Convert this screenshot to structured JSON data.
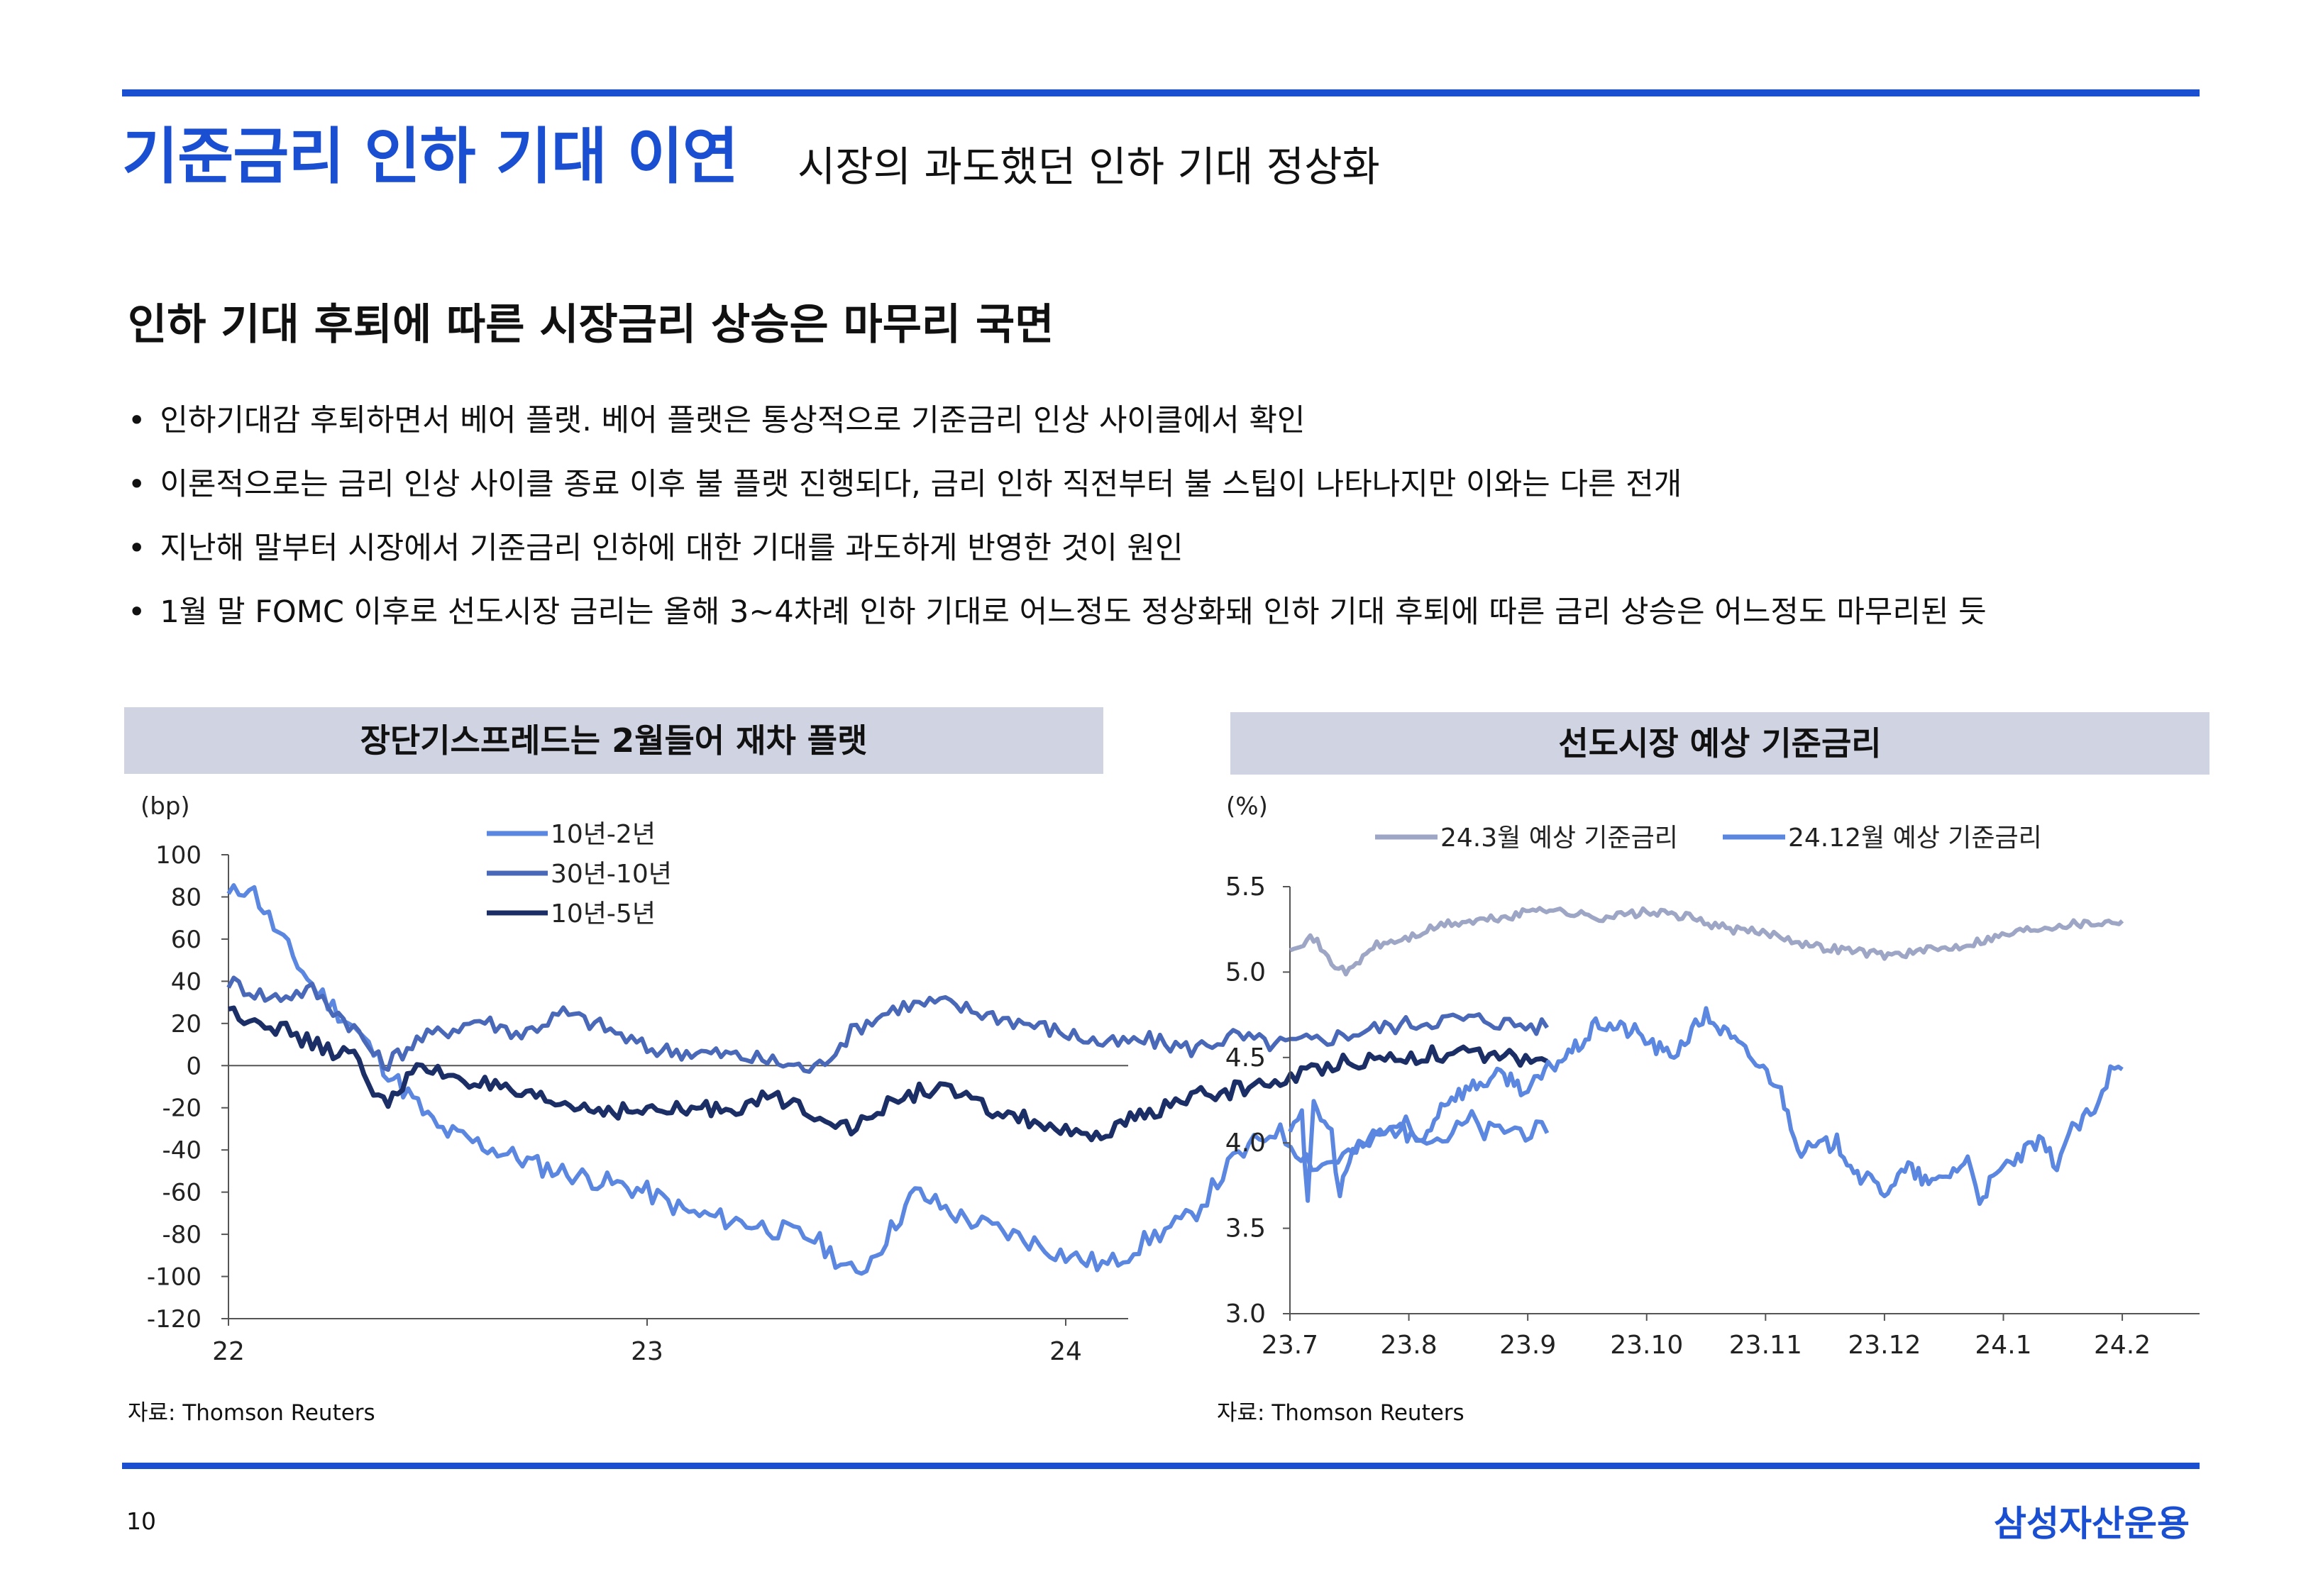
{
  "header": {
    "title": "기준금리 인하 기대 이연",
    "subtitle": "시장의 과도했던 인하 기대 정상화"
  },
  "section": {
    "headline": "인하 기대 후퇴에 따른 시장금리 상승은 마무리 국면",
    "bullets": [
      "인하기대감 후퇴하면서 베어 플랫. 베어 플랫은 통상적으로 기준금리 인상 사이클에서 확인",
      "이론적으로는 금리 인상 사이클 종료 이후 불 플랫 진행되다, 금리 인하 직전부터 불 스팁이 나타나지만 이와는 다른 전개",
      "지난해 말부터 시장에서 기준금리 인하에 대한 기대를 과도하게 반영한 것이 원인",
      "1월 말 FOMC 이후로 선도시장 금리는 올해 3~4차례 인하 기대로 어느정도 정상화돼 인하 기대 후퇴에 따른 금리 상승은 어느정도 마무리된 듯"
    ]
  },
  "colors": {
    "accent": "#1b4fd1",
    "panel_bg": "#d0d4e2",
    "series_light": "#5b87e0",
    "series_mid": "#4a68b8",
    "series_dark": "#1b2f66",
    "series_gray": "#9ea6c6"
  },
  "chart_data": [
    {
      "type": "line",
      "title": "장단기스프레드는 2월들어 재차 플랫",
      "unit_label": "(bp)",
      "x_ticks": [
        "22",
        "23",
        "24"
      ],
      "ylim": [
        -120,
        100
      ],
      "y_ticks": [
        100,
        80,
        60,
        40,
        20,
        0,
        -20,
        -40,
        -60,
        -80,
        -100,
        -120
      ],
      "legend_position": "top-center",
      "series": [
        {
          "name": "10년-2년",
          "color_key": "series_light",
          "anchors": [
            [
              0,
              80
            ],
            [
              0.05,
              86
            ],
            [
              0.12,
              62
            ],
            [
              0.2,
              38
            ],
            [
              0.3,
              18
            ],
            [
              0.37,
              0
            ],
            [
              0.5,
              -30
            ],
            [
              0.75,
              -48
            ],
            [
              1.0,
              -60
            ],
            [
              1.1,
              -70
            ],
            [
              1.25,
              -75
            ],
            [
              1.4,
              -82
            ],
            [
              1.5,
              -100
            ],
            [
              1.56,
              -85
            ],
            [
              1.64,
              -60
            ],
            [
              1.75,
              -72
            ],
            [
              1.9,
              -82
            ],
            [
              2.0,
              -90
            ],
            [
              2.1,
              -95
            ],
            [
              2.2,
              -82
            ],
            [
              2.3,
              -72
            ],
            [
              2.4,
              -45
            ],
            [
              2.5,
              -30
            ],
            [
              2.6,
              -48
            ],
            [
              2.7,
              -40
            ],
            [
              2.8,
              -28
            ],
            [
              2.9,
              -35
            ],
            [
              2.97,
              -26
            ],
            [
              3.0,
              -32
            ],
            [
              3.06,
              -30
            ],
            [
              3.15,
              -32
            ]
          ]
        },
        {
          "name": "30년-10년",
          "color_key": "series_mid",
          "anchors": [
            [
              0,
              40
            ],
            [
              0.1,
              32
            ],
            [
              0.2,
              36
            ],
            [
              0.3,
              18
            ],
            [
              0.37,
              0
            ],
            [
              0.45,
              12
            ],
            [
              0.6,
              22
            ],
            [
              0.7,
              15
            ],
            [
              0.8,
              25
            ],
            [
              0.9,
              18
            ],
            [
              1.0,
              8
            ],
            [
              1.2,
              5
            ],
            [
              1.3,
              2
            ],
            [
              1.4,
              -2
            ],
            [
              1.5,
              18
            ],
            [
              1.6,
              28
            ],
            [
              1.7,
              30
            ],
            [
              1.8,
              25
            ],
            [
              1.95,
              18
            ],
            [
              2.1,
              10
            ],
            [
              2.2,
              12
            ],
            [
              2.3,
              8
            ],
            [
              2.4,
              14
            ],
            [
              2.5,
              10
            ],
            [
              2.6,
              12
            ],
            [
              2.75,
              18
            ],
            [
              2.9,
              22
            ],
            [
              3.0,
              22
            ],
            [
              3.06,
              20
            ],
            [
              3.15,
              18
            ]
          ]
        },
        {
          "name": "10년-5년",
          "color_key": "series_dark",
          "anchors": [
            [
              0,
              26
            ],
            [
              0.1,
              20
            ],
            [
              0.2,
              10
            ],
            [
              0.3,
              4
            ],
            [
              0.37,
              -18
            ],
            [
              0.45,
              -2
            ],
            [
              0.55,
              -5
            ],
            [
              0.7,
              -15
            ],
            [
              0.85,
              -20
            ],
            [
              1.0,
              -22
            ],
            [
              1.2,
              -20
            ],
            [
              1.3,
              -15
            ],
            [
              1.4,
              -22
            ],
            [
              1.5,
              -30
            ],
            [
              1.6,
              -15
            ],
            [
              1.7,
              -10
            ],
            [
              1.8,
              -20
            ],
            [
              1.95,
              -28
            ],
            [
              2.05,
              -36
            ],
            [
              2.2,
              -22
            ],
            [
              2.3,
              -15
            ],
            [
              2.45,
              -10
            ],
            [
              2.55,
              -5
            ],
            [
              2.65,
              2
            ],
            [
              2.8,
              4
            ],
            [
              2.9,
              6
            ],
            [
              3.0,
              4
            ],
            [
              3.06,
              4
            ],
            [
              3.15,
              2
            ]
          ]
        }
      ],
      "source": "자료: Thomson Reuters"
    },
    {
      "type": "line",
      "title": "선도시장 예상 기준금리",
      "unit_label": "(%)",
      "x_ticks": [
        "23.7",
        "23.8",
        "23.9",
        "23.10",
        "23.11",
        "23.12",
        "24.1",
        "24.2"
      ],
      "ylim": [
        3.0,
        5.5
      ],
      "y_ticks": [
        "5.5",
        "5.0",
        "4.5",
        "4.0",
        "3.5",
        "3.0"
      ],
      "legend_position": "top",
      "series": [
        {
          "name": "24.3월 예상 기준금리",
          "color_key": "series_gray",
          "anchors": [
            [
              0,
              5.15
            ],
            [
              0.2,
              5.2
            ],
            [
              0.35,
              5.05
            ],
            [
              0.5,
              5.0
            ],
            [
              0.7,
              5.15
            ],
            [
              1.0,
              5.2
            ],
            [
              1.3,
              5.28
            ],
            [
              1.6,
              5.3
            ],
            [
              1.9,
              5.33
            ],
            [
              2.1,
              5.38
            ],
            [
              2.3,
              5.35
            ],
            [
              2.6,
              5.32
            ],
            [
              3.0,
              5.35
            ],
            [
              3.3,
              5.33
            ],
            [
              3.7,
              5.25
            ],
            [
              4.1,
              5.22
            ],
            [
              4.4,
              5.15
            ],
            [
              4.7,
              5.13
            ],
            [
              5.0,
              5.1
            ],
            [
              5.3,
              5.12
            ],
            [
              5.6,
              5.15
            ],
            [
              5.9,
              5.2
            ],
            [
              6.2,
              5.25
            ],
            [
              6.5,
              5.28
            ],
            [
              6.8,
              5.29
            ],
            [
              7.0,
              5.3
            ]
          ]
        },
        {
          "name": "24.12월 예상 기준금리",
          "color_key": "series_light",
          "anchors": [
            [
              0,
              4.1
            ],
            [
              0.1,
              4.2
            ],
            [
              0.15,
              3.62
            ],
            [
              0.2,
              4.22
            ],
            [
              0.35,
              4.05
            ],
            [
              0.42,
              3.7
            ],
            [
              0.5,
              3.9
            ],
            [
              0.7,
              4.05
            ],
            [
              0.9,
              4.1
            ],
            [
              1.1,
              4.0
            ],
            [
              1.3,
              4.25
            ],
            [
              1.6,
              4.35
            ],
            [
              1.8,
              4.4
            ],
            [
              2.0,
              4.3
            ],
            [
              2.2,
              4.45
            ],
            [
              2.4,
              4.55
            ],
            [
              2.6,
              4.7
            ],
            [
              2.9,
              4.65
            ],
            [
              3.2,
              4.5
            ],
            [
              3.5,
              4.75
            ],
            [
              3.8,
              4.55
            ],
            [
              4.1,
              4.35
            ],
            [
              4.3,
              3.95
            ],
            [
              4.6,
              4.0
            ],
            [
              4.8,
              3.8
            ],
            [
              5.0,
              3.72
            ],
            [
              5.2,
              3.85
            ],
            [
              5.4,
              3.75
            ],
            [
              5.7,
              3.9
            ],
            [
              5.8,
              3.68
            ],
            [
              6.0,
              3.85
            ],
            [
              6.3,
              4.0
            ],
            [
              6.45,
              3.88
            ],
            [
              6.55,
              4.05
            ],
            [
              6.7,
              4.15
            ],
            [
              6.8,
              4.2
            ],
            [
              6.9,
              4.42
            ],
            [
              7.0,
              4.43
            ]
          ]
        }
      ],
      "source": "자료: Thomson Reuters"
    }
  ],
  "footer": {
    "page_number": "10",
    "brand": "삼성자산운용"
  }
}
